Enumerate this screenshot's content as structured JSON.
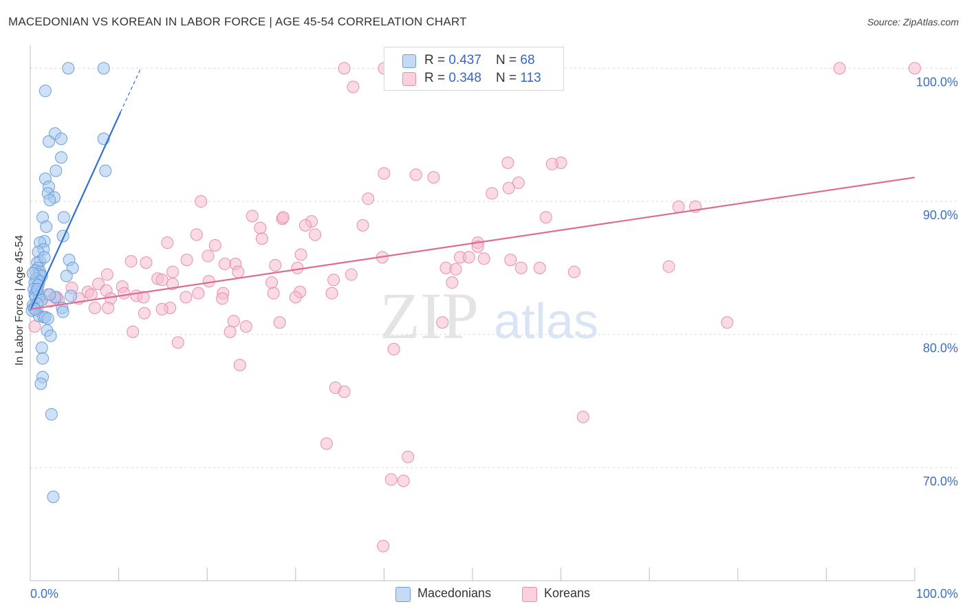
{
  "title": "MACEDONIAN VS KOREAN IN LABOR FORCE | AGE 45-54 CORRELATION CHART",
  "source": "Source: ZipAtlas.com",
  "watermark": {
    "zip": "ZIP",
    "atlas": "atlas"
  },
  "legend": {
    "macedonians": {
      "r_label": "R = ",
      "r_value": "0.437",
      "n_label": "N = ",
      "n_value": "68"
    },
    "koreans": {
      "r_label": "R = ",
      "r_value": "0.348",
      "n_label": "N = ",
      "n_value": "113"
    }
  },
  "bottom_legend": {
    "macedonians": "Macedonians",
    "koreans": "Koreans"
  },
  "colors": {
    "macedonian_fill": "#a8c8f0",
    "macedonian_stroke": "#6a9fd8",
    "macedonian_line": "#2f6fd1",
    "korean_fill": "#f6bccd",
    "korean_stroke": "#e58fab",
    "korean_line": "#e06a95",
    "tick_label": "#3a6fc4",
    "grid": "#d9d9d9"
  },
  "chart_data": {
    "type": "scatter",
    "title": "MACEDONIAN VS KOREAN IN LABOR FORCE | AGE 45-54 CORRELATION CHART",
    "xlabel": "",
    "ylabel": "In Labor Force | Age 45-54",
    "xlim": [
      0,
      100
    ],
    "ylim": [
      61.5,
      101
    ],
    "x_tick_labels": [
      "0.0%",
      "100.0%"
    ],
    "y_ticks": [
      70,
      80,
      90,
      100
    ],
    "y_tick_labels": [
      "70.0%",
      "80.0%",
      "90.0%",
      "100.0%"
    ],
    "grid": "horizontal dashed",
    "legend_position": "top-center",
    "series": [
      {
        "name": "Macedonians",
        "r": 0.437,
        "n": 68,
        "trend": {
          "x0": 0.0,
          "y0": 81.8,
          "x1": 10.2,
          "y1": 96.7,
          "dashed_to_x": 12.5,
          "dashed_to_y": 100.0
        },
        "points": [
          [
            4.3,
            100.0
          ],
          [
            8.3,
            100.0
          ],
          [
            1.7,
            98.3
          ],
          [
            2.8,
            95.1
          ],
          [
            3.5,
            94.7
          ],
          [
            2.1,
            94.5
          ],
          [
            8.3,
            94.7
          ],
          [
            3.5,
            93.3
          ],
          [
            2.9,
            92.3
          ],
          [
            8.5,
            92.3
          ],
          [
            1.7,
            91.7
          ],
          [
            2.1,
            91.1
          ],
          [
            2.0,
            90.6
          ],
          [
            2.7,
            90.3
          ],
          [
            2.2,
            90.1
          ],
          [
            1.4,
            88.8
          ],
          [
            3.8,
            88.8
          ],
          [
            1.8,
            88.1
          ],
          [
            3.7,
            87.4
          ],
          [
            1.6,
            87.0
          ],
          [
            1.1,
            86.9
          ],
          [
            1.5,
            86.4
          ],
          [
            0.9,
            86.2
          ],
          [
            4.4,
            85.6
          ],
          [
            1.1,
            85.5
          ],
          [
            0.8,
            85.4
          ],
          [
            0.9,
            85.0
          ],
          [
            4.8,
            85.0
          ],
          [
            0.6,
            84.8
          ],
          [
            1.1,
            84.7
          ],
          [
            1.0,
            84.5
          ],
          [
            1.3,
            84.4
          ],
          [
            4.1,
            84.4
          ],
          [
            0.7,
            84.2
          ],
          [
            1.0,
            84.0
          ],
          [
            0.5,
            83.9
          ],
          [
            0.9,
            83.7
          ],
          [
            0.4,
            83.4
          ],
          [
            0.7,
            83.2
          ],
          [
            0.5,
            83.0
          ],
          [
            1.0,
            82.9
          ],
          [
            0.6,
            82.8
          ],
          [
            2.8,
            82.8
          ],
          [
            4.6,
            82.9
          ],
          [
            1.3,
            82.6
          ],
          [
            0.3,
            82.2
          ],
          [
            0.8,
            82.3
          ],
          [
            0.4,
            82.0
          ],
          [
            3.6,
            82.0
          ],
          [
            0.2,
            81.8
          ],
          [
            3.7,
            81.7
          ],
          [
            1.0,
            81.4
          ],
          [
            1.5,
            81.3
          ],
          [
            1.7,
            81.3
          ],
          [
            2.0,
            81.2
          ],
          [
            1.9,
            80.3
          ],
          [
            2.3,
            79.9
          ],
          [
            1.3,
            79.0
          ],
          [
            1.4,
            78.2
          ],
          [
            1.4,
            76.8
          ],
          [
            1.2,
            76.3
          ],
          [
            2.4,
            74.0
          ],
          [
            2.6,
            67.8
          ],
          [
            0.3,
            84.6
          ],
          [
            1.6,
            85.8
          ],
          [
            0.8,
            83.4
          ],
          [
            2.2,
            83.0
          ],
          [
            0.5,
            81.9
          ]
        ]
      },
      {
        "name": "Koreans",
        "r": 0.348,
        "n": 113,
        "trend": {
          "x0": 0.0,
          "y0": 81.9,
          "x1": 100.0,
          "y1": 91.8
        },
        "points": [
          [
            35.5,
            100.0
          ],
          [
            40.0,
            100.0
          ],
          [
            91.5,
            100.0
          ],
          [
            100.0,
            100.0
          ],
          [
            36.5,
            98.6
          ],
          [
            54.0,
            92.9
          ],
          [
            60.0,
            92.9
          ],
          [
            59.0,
            92.8
          ],
          [
            40.0,
            92.1
          ],
          [
            43.6,
            92.0
          ],
          [
            45.6,
            91.8
          ],
          [
            55.2,
            91.4
          ],
          [
            54.1,
            91.0
          ],
          [
            52.2,
            90.6
          ],
          [
            38.2,
            90.2
          ],
          [
            19.3,
            90.0
          ],
          [
            73.3,
            89.6
          ],
          [
            75.2,
            89.6
          ],
          [
            25.1,
            88.9
          ],
          [
            28.5,
            88.7
          ],
          [
            28.6,
            88.8
          ],
          [
            31.8,
            88.5
          ],
          [
            58.3,
            88.8
          ],
          [
            26.0,
            88.0
          ],
          [
            31.1,
            88.2
          ],
          [
            37.6,
            88.2
          ],
          [
            18.8,
            87.5
          ],
          [
            32.2,
            87.5
          ],
          [
            26.2,
            87.2
          ],
          [
            50.6,
            86.9
          ],
          [
            50.6,
            86.6
          ],
          [
            20.9,
            86.7
          ],
          [
            15.5,
            86.9
          ],
          [
            30.6,
            86.0
          ],
          [
            20.1,
            85.9
          ],
          [
            39.8,
            85.8
          ],
          [
            48.6,
            85.8
          ],
          [
            49.6,
            85.8
          ],
          [
            51.3,
            85.7
          ],
          [
            54.3,
            85.6
          ],
          [
            11.4,
            85.5
          ],
          [
            13.1,
            85.4
          ],
          [
            17.7,
            85.6
          ],
          [
            27.7,
            85.2
          ],
          [
            23.2,
            85.3
          ],
          [
            22.0,
            85.3
          ],
          [
            55.5,
            85.0
          ],
          [
            57.6,
            85.0
          ],
          [
            72.2,
            85.1
          ],
          [
            47.0,
            85.0
          ],
          [
            30.2,
            85.0
          ],
          [
            23.5,
            84.7
          ],
          [
            8.7,
            84.5
          ],
          [
            16.1,
            84.7
          ],
          [
            36.3,
            84.5
          ],
          [
            61.5,
            84.7
          ],
          [
            48.1,
            84.9
          ],
          [
            34.3,
            84.1
          ],
          [
            14.4,
            84.2
          ],
          [
            14.9,
            84.1
          ],
          [
            20.2,
            84.0
          ],
          [
            27.3,
            83.9
          ],
          [
            7.7,
            83.8
          ],
          [
            10.4,
            83.6
          ],
          [
            16.1,
            83.8
          ],
          [
            47.7,
            83.9
          ],
          [
            4.7,
            83.5
          ],
          [
            8.6,
            83.3
          ],
          [
            6.5,
            83.2
          ],
          [
            10.6,
            83.1
          ],
          [
            19.0,
            83.1
          ],
          [
            21.8,
            83.1
          ],
          [
            30.5,
            83.2
          ],
          [
            27.5,
            83.1
          ],
          [
            34.1,
            83.1
          ],
          [
            6.9,
            83.0
          ],
          [
            12.0,
            82.9
          ],
          [
            9.1,
            82.7
          ],
          [
            12.8,
            82.8
          ],
          [
            17.6,
            82.8
          ],
          [
            21.7,
            82.7
          ],
          [
            30.0,
            82.8
          ],
          [
            5.5,
            82.7
          ],
          [
            3.2,
            82.6
          ],
          [
            2.3,
            82.5
          ],
          [
            7.3,
            82.0
          ],
          [
            8.8,
            82.0
          ],
          [
            15.8,
            82.0
          ],
          [
            14.9,
            81.9
          ],
          [
            12.9,
            81.6
          ],
          [
            23.0,
            81.0
          ],
          [
            24.4,
            80.6
          ],
          [
            28.2,
            80.9
          ],
          [
            46.6,
            80.9
          ],
          [
            78.8,
            80.9
          ],
          [
            11.6,
            80.2
          ],
          [
            22.6,
            80.2
          ],
          [
            16.7,
            79.4
          ],
          [
            41.1,
            78.9
          ],
          [
            23.7,
            77.7
          ],
          [
            34.5,
            76.0
          ],
          [
            35.5,
            75.7
          ],
          [
            62.5,
            73.8
          ],
          [
            33.5,
            71.8
          ],
          [
            42.7,
            70.8
          ],
          [
            40.8,
            69.1
          ],
          [
            42.2,
            69.0
          ],
          [
            39.9,
            64.1
          ],
          [
            0.5,
            80.6
          ],
          [
            1.1,
            82.8
          ],
          [
            2.0,
            83.0
          ],
          [
            0.8,
            81.8
          ],
          [
            3.0,
            82.8
          ]
        ]
      }
    ]
  }
}
